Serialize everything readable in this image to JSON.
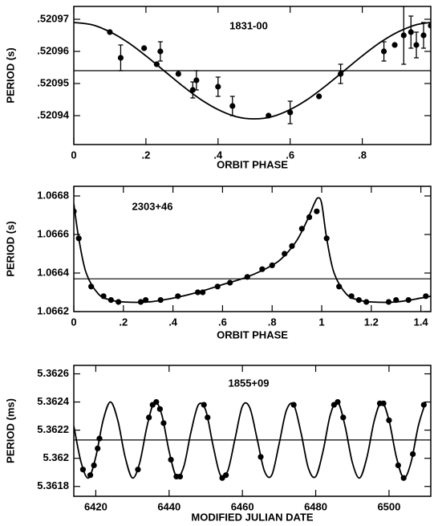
{
  "chart_data": [
    {
      "type": "scatter",
      "title": "1831-00",
      "xlabel": "ORBIT PHASE",
      "ylabel": "PERIOD (s)",
      "color": "#000000",
      "xlim": [
        0,
        0.99
      ],
      "ylim": [
        0.520931,
        0.520974
      ],
      "xticks": [
        0,
        {
          "value": 0.2,
          "label": ".2"
        },
        {
          "value": 0.4,
          "label": ".4"
        },
        {
          "value": 0.6,
          "label": ".6"
        },
        {
          "value": 0.8,
          "label": ".8"
        }
      ],
      "yticks": [
        {
          "value": 0.52094,
          "label": ".52094"
        },
        {
          "value": 0.52095,
          "label": ".52095"
        },
        {
          "value": 0.52096,
          "label": ".52096"
        },
        {
          "value": 0.52097,
          "label": ".52097"
        }
      ],
      "points": {
        "x": [
          0.1,
          0.13,
          0.195,
          0.23,
          0.24,
          0.29,
          0.33,
          0.34,
          0.4,
          0.44,
          0.54,
          0.6,
          0.68,
          0.74,
          0.86,
          0.89,
          0.915,
          0.935,
          0.95,
          0.97,
          0.99
        ],
        "y": [
          0.520966,
          0.520958,
          0.520961,
          0.520956,
          0.52096,
          0.520953,
          0.520948,
          0.520951,
          0.520949,
          0.520943,
          0.52094,
          0.520941,
          0.520946,
          0.520953,
          0.52096,
          0.520962,
          0.520965,
          0.520966,
          0.520962,
          0.520965,
          0.520968
        ],
        "err": [
          null,
          4e-06,
          null,
          null,
          3e-06,
          null,
          2.5e-06,
          3e-06,
          3e-06,
          3e-06,
          null,
          3.5e-06,
          null,
          3e-06,
          3e-06,
          null,
          9e-06,
          5e-06,
          4e-06,
          4e-06,
          null
        ]
      },
      "fit": {
        "x": [
          0,
          0.05,
          0.1,
          0.15,
          0.2,
          0.25,
          0.3,
          0.35,
          0.4,
          0.45,
          0.5,
          0.55,
          0.6,
          0.65,
          0.7,
          0.75,
          0.8,
          0.85,
          0.9,
          0.95,
          0.99
        ],
        "y": [
          0.520969,
          0.5209683,
          0.5209661,
          0.5209628,
          0.5209586,
          0.520954,
          0.5209494,
          0.5209452,
          0.5209419,
          0.5209397,
          0.520939,
          0.5209397,
          0.5209419,
          0.5209452,
          0.5209494,
          0.520954,
          0.5209586,
          0.5209628,
          0.5209661,
          0.5209683,
          0.520969
        ]
      },
      "reference_line": 0.520954
    },
    {
      "type": "scatter",
      "title": "2303+46",
      "xlabel": "ORBIT PHASE",
      "ylabel": "PERIOD (s)",
      "color": "#000000",
      "xlim": [
        0,
        1.44
      ],
      "ylim": [
        1.0662,
        1.06685
      ],
      "xticks": [
        0,
        {
          "value": 0.2,
          "label": ".2"
        },
        {
          "value": 0.4,
          "label": ".4"
        },
        {
          "value": 0.6,
          "label": ".6"
        },
        {
          "value": 0.8,
          "label": ".8"
        },
        1,
        1.2,
        1.4
      ],
      "yticks": [
        1.0662,
        1.0664,
        1.0666,
        1.0668
      ],
      "points": {
        "x": [
          0,
          0.02,
          0.07,
          0.12,
          0.15,
          0.18,
          0.27,
          0.29,
          0.35,
          0.42,
          0.5,
          0.52,
          0.58,
          0.63,
          0.7,
          0.76,
          0.8,
          0.85,
          0.88,
          0.92,
          0.95,
          0.98,
          1.02,
          1.07,
          1.12,
          1.15,
          1.18,
          1.27,
          1.3,
          1.35,
          1.42
        ],
        "y": [
          1.06672,
          1.06658,
          1.06633,
          1.06628,
          1.06626,
          1.06625,
          1.06625,
          1.06626,
          1.06626,
          1.06628,
          1.0663,
          1.0663,
          1.06633,
          1.06635,
          1.06638,
          1.06642,
          1.06644,
          1.0665,
          1.06654,
          1.06663,
          1.06669,
          1.06672,
          1.06658,
          1.06633,
          1.06628,
          1.06626,
          1.06625,
          1.06625,
          1.06626,
          1.06626,
          1.06628
        ],
        "err": [
          null,
          null,
          null,
          null,
          null,
          null,
          null,
          null,
          null,
          null,
          null,
          null,
          null,
          null,
          null,
          null,
          null,
          null,
          null,
          null,
          null,
          null,
          null,
          null,
          null,
          null,
          null,
          null,
          null,
          null,
          null
        ]
      },
      "fit": {
        "x": [
          0,
          0.02,
          0.05,
          0.1,
          0.15,
          0.2,
          0.3,
          0.4,
          0.5,
          0.6,
          0.7,
          0.8,
          0.85,
          0.9,
          0.94,
          0.97,
          0.985,
          1.0,
          1.02,
          1.05,
          1.1,
          1.15,
          1.2,
          1.3,
          1.4,
          1.44
        ],
        "y": [
          1.06676,
          1.06658,
          1.0664,
          1.06629,
          1.06626,
          1.06625,
          1.06625,
          1.06627,
          1.0663,
          1.06634,
          1.06638,
          1.06644,
          1.06649,
          1.06657,
          1.06667,
          1.06676,
          1.06679,
          1.06676,
          1.06658,
          1.0664,
          1.06629,
          1.06626,
          1.06625,
          1.06625,
          1.06627,
          1.06628
        ]
      },
      "reference_line": 1.06637
    },
    {
      "type": "scatter",
      "title": "1855+09",
      "xlabel": "MODIFIED JULIAN DATE",
      "ylabel": "PERIOD (ms)",
      "color": "#000000",
      "xlim": [
        6414,
        6511.4
      ],
      "ylim": [
        5.36173,
        5.36266
      ],
      "xticks": [
        6420,
        6440,
        6460,
        6480,
        6500
      ],
      "yticks": [
        5.3618,
        5.362,
        5.3622,
        5.3624,
        5.3626
      ],
      "points": {
        "x": [
          6416.5,
          6418.5,
          6419.5,
          6420.5,
          6421,
          6431.5,
          6434.5,
          6435.5,
          6436.5,
          6437.5,
          6438.5,
          6440.5,
          6442,
          6443,
          6449.5,
          6450.5,
          6454.5,
          6455.5,
          6465,
          6474,
          6485,
          6486,
          6487.5,
          6497.5,
          6498.5,
          6500,
          6502.5,
          6504,
          6506.5,
          6509.5
        ],
        "y": [
          5.36192,
          5.36188,
          5.36195,
          5.36207,
          5.36214,
          5.36192,
          5.36229,
          5.36238,
          5.3624,
          5.36235,
          5.36225,
          5.36199,
          5.36187,
          5.36187,
          5.36238,
          5.36229,
          5.36186,
          5.36188,
          5.36201,
          5.36238,
          5.36238,
          5.3624,
          5.36229,
          5.36239,
          5.36239,
          5.36227,
          5.36195,
          5.36186,
          5.36203,
          5.36238
        ],
        "err": [
          null,
          null,
          null,
          null,
          null,
          null,
          null,
          null,
          null,
          null,
          null,
          null,
          null,
          null,
          null,
          null,
          null,
          null,
          null,
          null,
          null,
          null,
          null,
          null,
          null,
          null,
          null,
          null,
          null,
          null
        ]
      },
      "fit": {
        "x": [
          6414,
          6416,
          6418,
          6420,
          6422,
          6424,
          6426,
          6428,
          6430,
          6432,
          6434,
          6436,
          6438,
          6440,
          6442,
          6444,
          6446,
          6448,
          6450,
          6452,
          6454,
          6456,
          6458,
          6460,
          6462,
          6464,
          6466,
          6468,
          6470,
          6472,
          6474,
          6476,
          6478,
          6480,
          6482,
          6484,
          6486,
          6488,
          6490,
          6492,
          6494,
          6496,
          6498,
          6500,
          6502,
          6504,
          6506,
          6508,
          6510
        ],
        "y": [
          5.36223,
          5.36197,
          5.36186,
          5.36201,
          5.36227,
          5.3624,
          5.36227,
          5.36201,
          5.36186,
          5.36197,
          5.36223,
          5.3624,
          5.36231,
          5.36205,
          5.36187,
          5.36194,
          5.36219,
          5.36238,
          5.36234,
          5.36209,
          5.36188,
          5.36191,
          5.36214,
          5.36237,
          5.36236,
          5.36214,
          5.36191,
          5.36188,
          5.3621,
          5.36234,
          5.36238,
          5.36218,
          5.36193,
          5.36187,
          5.36205,
          5.36231,
          5.3624,
          5.36223,
          5.36197,
          5.36186,
          5.36201,
          5.36227,
          5.3624,
          5.36227,
          5.36201,
          5.36186,
          5.36197,
          5.36223,
          5.3624
        ]
      },
      "reference_line": 5.36213
    }
  ]
}
